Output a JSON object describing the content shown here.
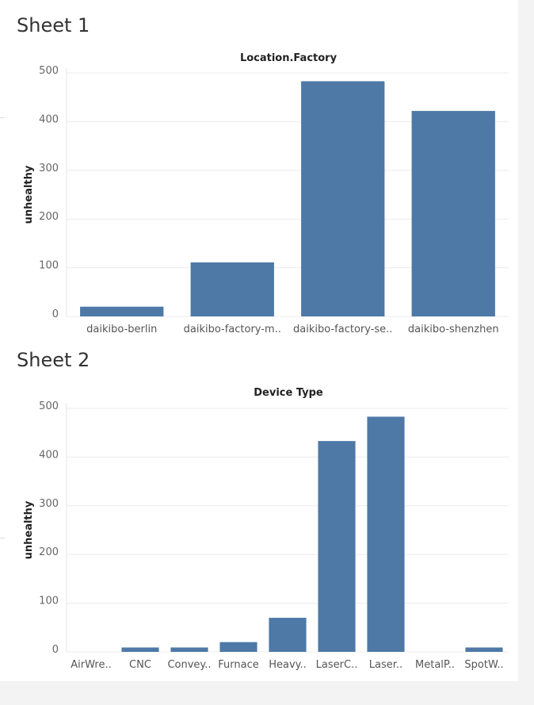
{
  "sheets": [
    {
      "title": "Sheet 1",
      "chart_data": {
        "type": "bar",
        "title": "Location.Factory",
        "xlabel": "",
        "ylabel": "unhealthy",
        "ylim": [
          0,
          500
        ],
        "yticks": [
          0,
          100,
          200,
          300,
          400,
          500
        ],
        "categories": [
          "daikibo-berlin",
          "daikibo-factory-m..",
          "daikibo-factory-se..",
          "daikibo-shenzhen"
        ],
        "values": [
          20,
          111,
          483,
          422
        ],
        "grid": true,
        "bar_color": "#4e79a7"
      }
    },
    {
      "title": "Sheet 2",
      "chart_data": {
        "type": "bar",
        "title": "Device Type",
        "xlabel": "",
        "ylabel": "unhealthy",
        "ylim": [
          0,
          500
        ],
        "yticks": [
          0,
          100,
          200,
          300,
          400,
          500
        ],
        "categories": [
          "AirWre..",
          "CNC",
          "Convey..",
          "Furnace",
          "Heavy..",
          "LaserC..",
          "Laser..",
          "MetalP..",
          "SpotW.."
        ],
        "values": [
          0,
          9,
          9,
          20,
          70,
          433,
          483,
          0,
          9
        ],
        "grid": true,
        "bar_color": "#4e79a7"
      }
    }
  ]
}
